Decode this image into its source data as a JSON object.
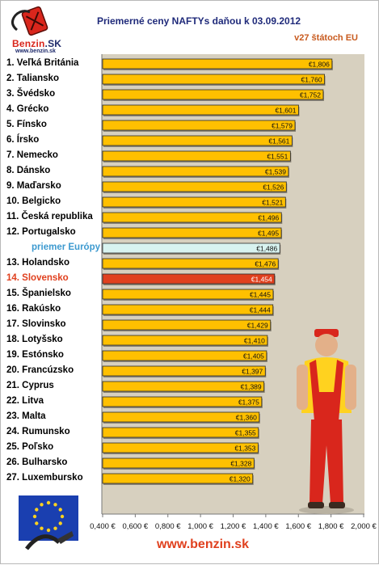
{
  "logo": {
    "name_main": "Benzin",
    "name_accent": ".SK",
    "url": "www.benzin.sk"
  },
  "header": {
    "title": "Priemerné ceny NAFTYs daňou k 03.09.2012",
    "subtitle": "v27 štátoch EU"
  },
  "footer": {
    "url": "www.benzin.sk"
  },
  "colors": {
    "bar": "#ffc000",
    "average_bar": "#d8f3f0",
    "slovakia_bar": "#e0401e",
    "plot_bg": "#d7d0bf"
  },
  "chart_data": {
    "type": "bar",
    "orientation": "horizontal",
    "title": "Priemerné ceny NAFTYs daňou k 03.09.2012",
    "subtitle": "v27 štátoch EU",
    "xlim": [
      0.4,
      2.0
    ],
    "x_ticks": [
      0.4,
      0.6,
      0.8,
      1.0,
      1.2,
      1.4,
      1.6,
      1.8,
      2.0
    ],
    "x_tick_labels": [
      "0,400 €",
      "0,600 €",
      "0,800 €",
      "1,000 €",
      "1,200 €",
      "1,400 €",
      "1,600 €",
      "1,800 €",
      "2,000 €"
    ],
    "categories": [
      "1. Veľká Británia",
      "2. Taliansko",
      "3. Švédsko",
      "4. Grécko",
      "5. Fínsko",
      "6. Írsko",
      "7. Nemecko",
      "8. Dánsko",
      "9. Maďarsko",
      "10. Belgicko",
      "11. Česká republika",
      "12. Portugalsko",
      "priemer Európy",
      "13. Holandsko",
      "14. Slovensko",
      "15. Španielsko",
      "16. Rakúsko",
      "17. Slovinsko",
      "18. Lotyšsko",
      "19. Estónsko",
      "20. Francúzsko",
      "21. Cyprus",
      "22. Litva",
      "23. Malta",
      "24. Rumunsko",
      "25. Poľsko",
      "26. Bulharsko",
      "27. Luxembursko"
    ],
    "values": [
      1.806,
      1.76,
      1.752,
      1.601,
      1.579,
      1.561,
      1.551,
      1.539,
      1.526,
      1.521,
      1.496,
      1.495,
      1.486,
      1.476,
      1.454,
      1.445,
      1.444,
      1.429,
      1.41,
      1.405,
      1.397,
      1.389,
      1.375,
      1.36,
      1.355,
      1.353,
      1.328,
      1.32
    ],
    "value_labels": [
      "€1,806",
      "€1,760",
      "€1,752",
      "€1,601",
      "€1,579",
      "€1,561",
      "€1,551",
      "€1,539",
      "€1,526",
      "€1,521",
      "€1,496",
      "€1,495",
      "€1,486",
      "€1,476",
      "€1,454",
      "€1,445",
      "€1,444",
      "€1,429",
      "€1,410",
      "€1,405",
      "€1,397",
      "€1,389",
      "€1,375",
      "€1,360",
      "€1,355",
      "€1,353",
      "€1,328",
      "€1,320"
    ],
    "highlight": {
      "average_index": 12,
      "slovakia_index": 14
    },
    "grid": false
  }
}
